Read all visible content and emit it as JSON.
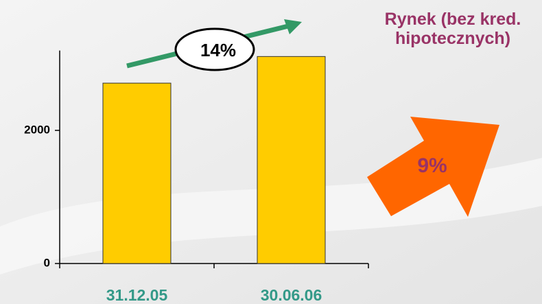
{
  "chart_data": {
    "type": "bar",
    "categories": [
      "31.12.05",
      "30.06.06"
    ],
    "values": [
      2710,
      3110
    ],
    "color": "#ffcc00",
    "ylim": [
      0,
      3200
    ],
    "yticks": [
      0,
      2000
    ],
    "annotations": [
      "14%",
      "Rynek (bez kred. hipotecznych)",
      "9%"
    ]
  }
}
